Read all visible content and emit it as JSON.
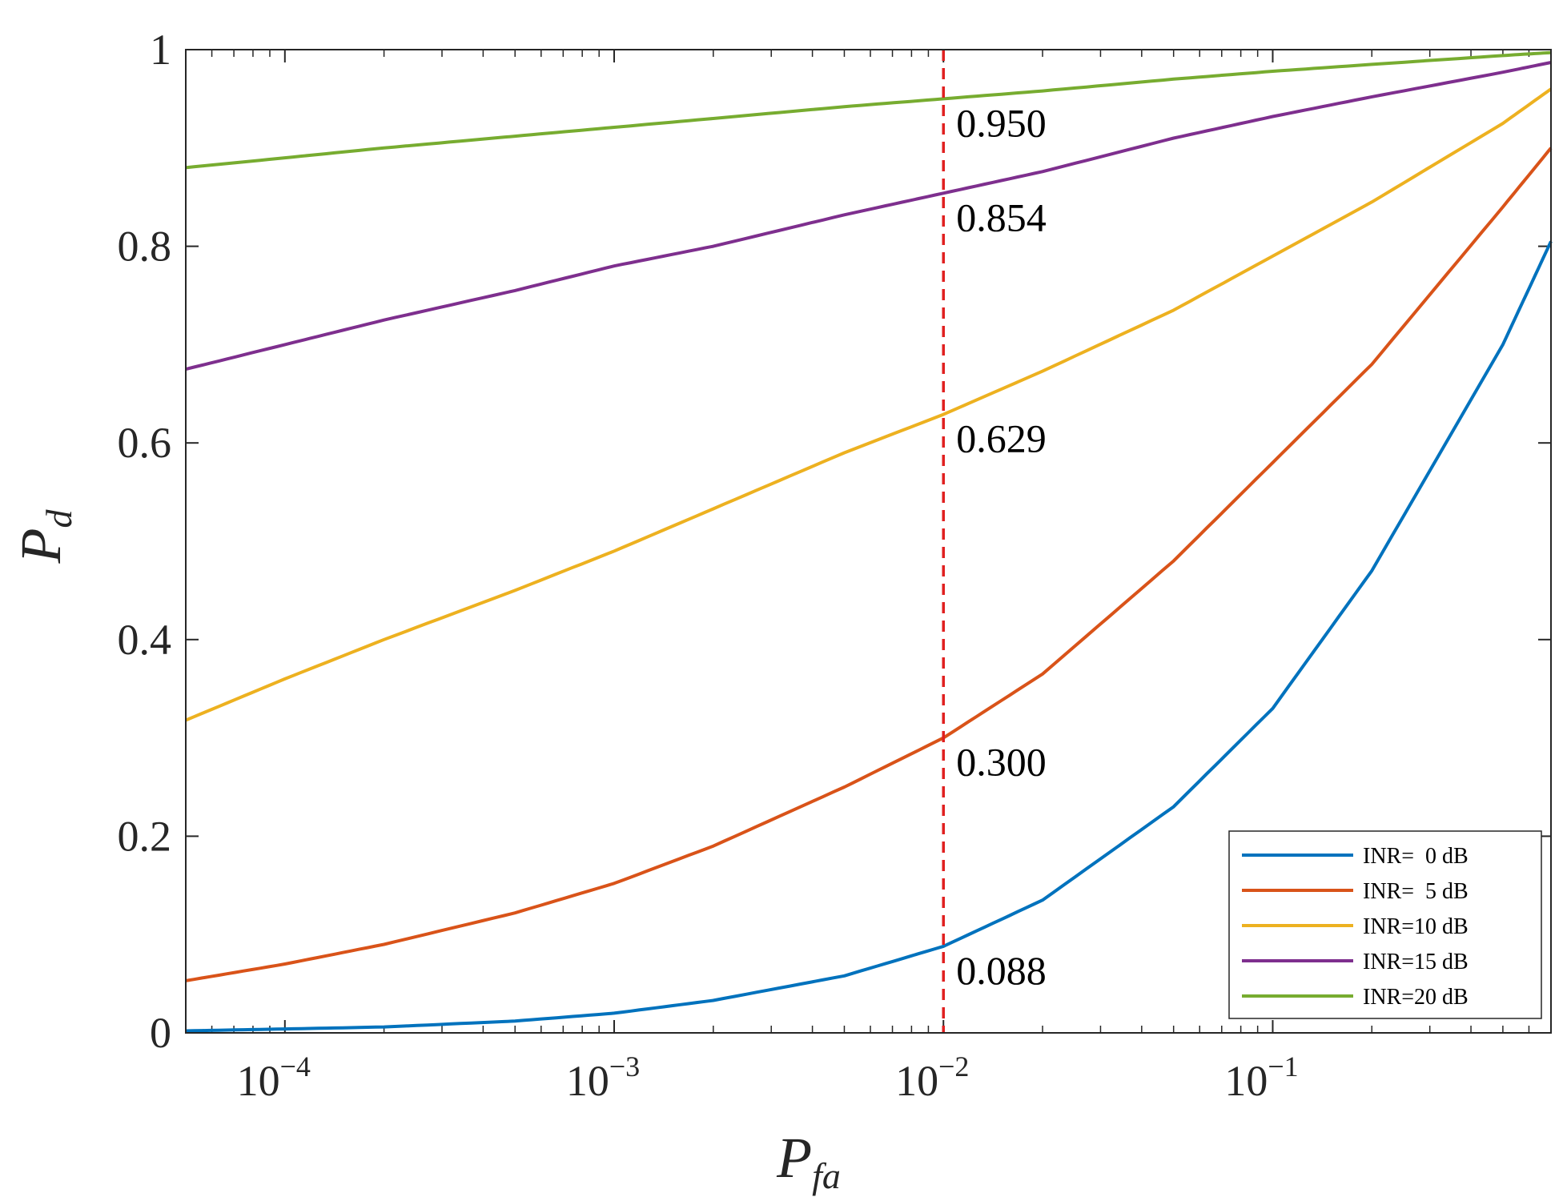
{
  "chart_data": {
    "type": "line",
    "xscale": "log",
    "xlim": [
      5e-05,
      0.7
    ],
    "ylim": [
      0,
      1
    ],
    "xlabel": {
      "main": "P",
      "sub": "fa"
    },
    "ylabel": {
      "main": "P",
      "sub": "d"
    },
    "x_ticks": [
      {
        "value": 0.0001,
        "base": "10",
        "exp": "−4"
      },
      {
        "value": 0.001,
        "base": "10",
        "exp": "−3"
      },
      {
        "value": 0.01,
        "base": "10",
        "exp": "−2"
      },
      {
        "value": 0.1,
        "base": "10",
        "exp": "−1"
      }
    ],
    "y_ticks": [
      {
        "value": 0,
        "label": "0"
      },
      {
        "value": 0.2,
        "label": "0.2"
      },
      {
        "value": 0.4,
        "label": "0.4"
      },
      {
        "value": 0.6,
        "label": "0.6"
      },
      {
        "value": 0.8,
        "label": "0.8"
      },
      {
        "value": 1,
        "label": "1"
      }
    ],
    "grid": false,
    "legend_position": "bottom-right",
    "x": [
      5e-05,
      0.0001,
      0.0002,
      0.0005,
      0.001,
      0.002,
      0.005,
      0.01,
      0.02,
      0.05,
      0.1,
      0.2,
      0.5,
      0.7
    ],
    "series": [
      {
        "name": "INR=  0 dB",
        "color": "#0072BD",
        "values": [
          0.002,
          0.004,
          0.006,
          0.012,
          0.02,
          0.033,
          0.058,
          0.088,
          0.135,
          0.23,
          0.33,
          0.47,
          0.7,
          0.805
        ]
      },
      {
        "name": "INR=  5 dB",
        "color": "#D95319",
        "values": [
          0.053,
          0.07,
          0.09,
          0.122,
          0.152,
          0.19,
          0.25,
          0.3,
          0.365,
          0.48,
          0.58,
          0.68,
          0.84,
          0.9
        ]
      },
      {
        "name": "INR=10 dB",
        "color": "#EDB120",
        "values": [
          0.318,
          0.36,
          0.4,
          0.45,
          0.49,
          0.533,
          0.59,
          0.629,
          0.673,
          0.735,
          0.79,
          0.845,
          0.925,
          0.96
        ]
      },
      {
        "name": "INR=15 dB",
        "color": "#7E2F8E",
        "values": [
          0.675,
          0.7,
          0.725,
          0.755,
          0.78,
          0.8,
          0.832,
          0.854,
          0.876,
          0.91,
          0.932,
          0.952,
          0.977,
          0.987
        ]
      },
      {
        "name": "INR=20 dB",
        "color": "#77AC30",
        "values": [
          0.88,
          0.89,
          0.9,
          0.912,
          0.921,
          0.93,
          0.942,
          0.95,
          0.958,
          0.97,
          0.978,
          0.985,
          0.994,
          0.997
        ]
      }
    ],
    "threshold": {
      "x": 0.01,
      "color": "#E02020",
      "style": "dashed"
    },
    "annotations": [
      {
        "text": "0.950",
        "y": 0.95
      },
      {
        "text": "0.854",
        "y": 0.854
      },
      {
        "text": "0.629",
        "y": 0.629
      },
      {
        "text": "0.300",
        "y": 0.3
      },
      {
        "text": "0.088",
        "y": 0.088
      }
    ]
  }
}
